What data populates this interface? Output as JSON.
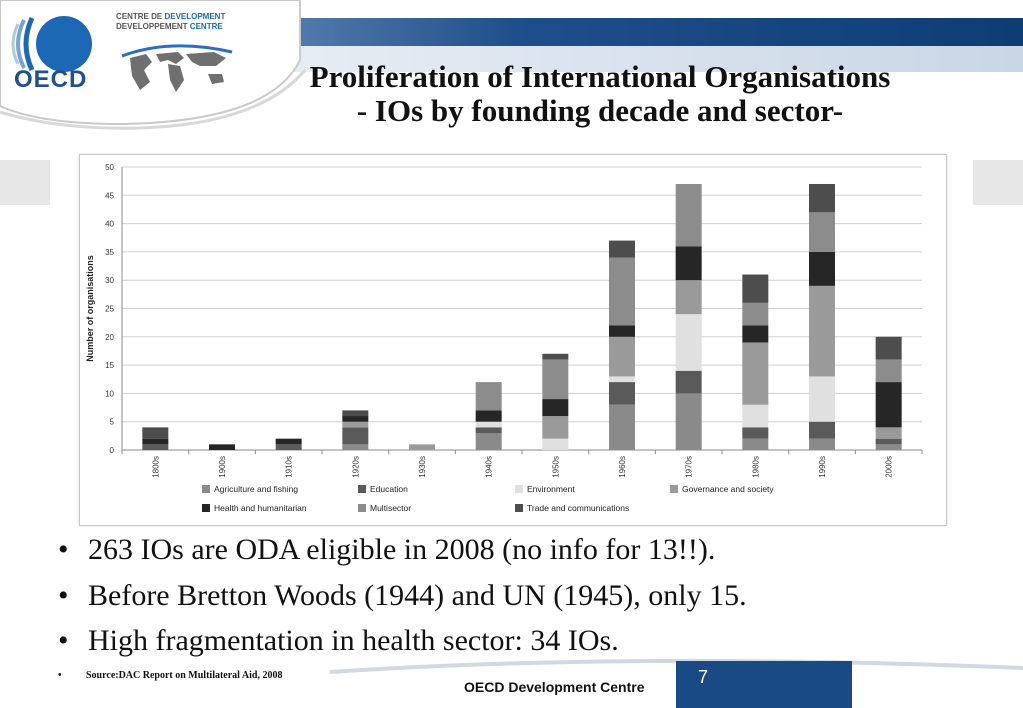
{
  "header": {
    "logo_text": "OECD",
    "dev_centre_line1_a": "CENTRE DE ",
    "dev_centre_line1_b": "DEVELOPMENT",
    "dev_centre_line2_a": "DEVELOPPEMENT ",
    "dev_centre_line2_b": "CENTRE"
  },
  "title_line1": "Proliferation of International Organisations",
  "title_line2": "- IOs by founding decade and sector-",
  "chart_data": {
    "type": "bar",
    "stacked": true,
    "ylabel": "Number of organisations",
    "ylim": [
      0,
      50
    ],
    "yticks": [
      0,
      5,
      10,
      15,
      20,
      25,
      30,
      35,
      40,
      45,
      50
    ],
    "grid": true,
    "legend_position": "bottom",
    "categories": [
      "1800s",
      "1900s",
      "1910s",
      "1920s",
      "1930s",
      "1940s",
      "1950s",
      "1960s",
      "1970s",
      "1980s",
      "1990s",
      "2000s"
    ],
    "series": [
      {
        "name": "Agriculture and fishing",
        "color": "#8a8a8a",
        "values": [
          0,
          0,
          0,
          1,
          0,
          3,
          0,
          8,
          10,
          2,
          2,
          1
        ]
      },
      {
        "name": "Education",
        "color": "#5a5a5a",
        "values": [
          1,
          0,
          1,
          3,
          0,
          1,
          0,
          4,
          4,
          2,
          3,
          1
        ]
      },
      {
        "name": "Environment",
        "color": "#e0e0e0",
        "values": [
          0,
          0,
          0,
          0,
          0,
          1,
          2,
          1,
          10,
          4,
          8,
          0
        ]
      },
      {
        "name": "Governance and society",
        "color": "#9a9a9a",
        "values": [
          0,
          0,
          0,
          1,
          1,
          0,
          4,
          7,
          6,
          11,
          16,
          2
        ]
      },
      {
        "name": "Health and humanitarian",
        "color": "#262626",
        "values": [
          1,
          1,
          1,
          1,
          0,
          2,
          3,
          2,
          6,
          3,
          6,
          8
        ]
      },
      {
        "name": "Multisector",
        "color": "#8c8c8c",
        "values": [
          0,
          0,
          0,
          0,
          0,
          5,
          7,
          12,
          11,
          4,
          7,
          4
        ]
      },
      {
        "name": "Trade and communications",
        "color": "#4d4d4d",
        "values": [
          2,
          0,
          0,
          1,
          0,
          0,
          1,
          3,
          0,
          5,
          5,
          4
        ]
      }
    ]
  },
  "bullets": [
    "263 IOs are ODA eligible in 2008 (no info for 13!!).",
    "Before Bretton Woods (1944) and UN (1945), only 15.",
    "High fragmentation in health sector: 34 IOs."
  ],
  "bullet_glyph": "•",
  "source": "Source:DAC Report on Multilateral Aid, 2008",
  "footer_label": "OECD Development Centre",
  "page_number": "7"
}
